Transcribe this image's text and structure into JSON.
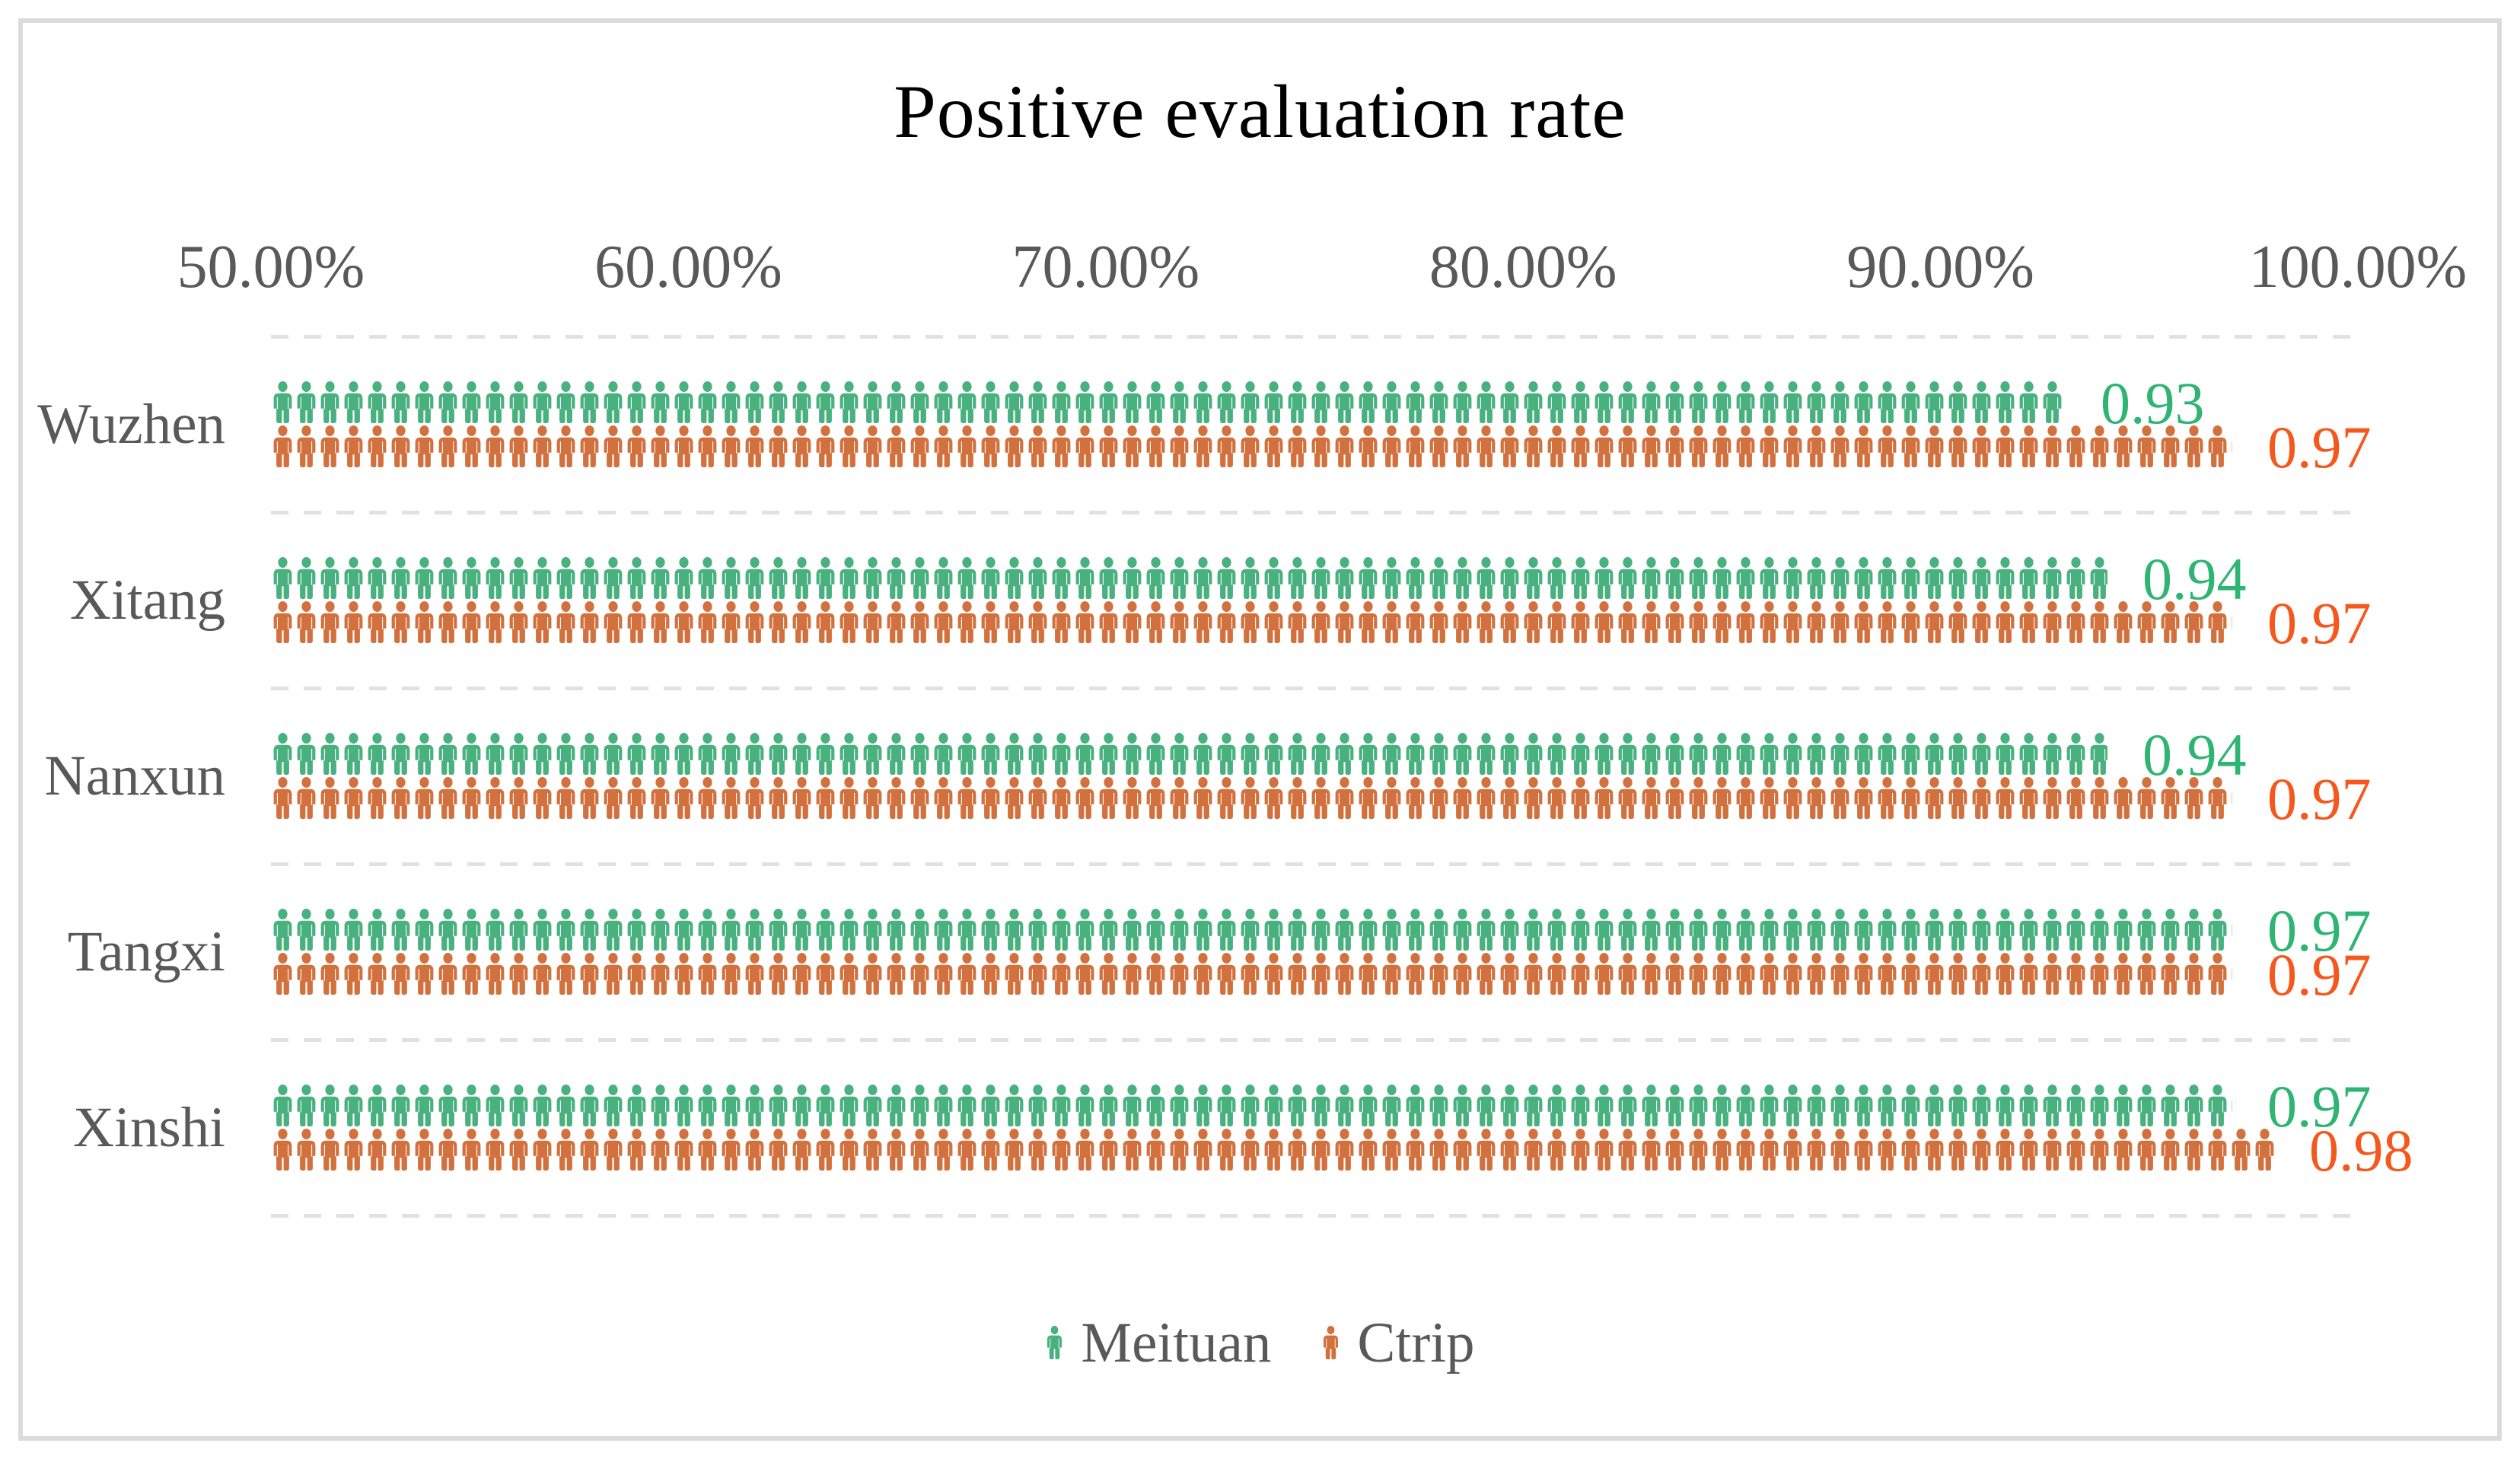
{
  "title": "Positive evaluation rate",
  "axis": {
    "tick_labels": [
      "50.00%",
      "60.00%",
      "70.00%",
      "80.00%",
      "90.00%",
      "100.00%"
    ],
    "min": 0.5,
    "max": 1.0
  },
  "legend": {
    "items": [
      {
        "label": "Meituan",
        "color_key": "green"
      },
      {
        "label": "Ctrip",
        "color_key": "orange"
      }
    ]
  },
  "colors": {
    "green_icon": "#48B17F",
    "orange_icon": "#D2713E",
    "green_label": "#2EB473",
    "orange_label": "#F4581D",
    "axis_text": "#595959",
    "title_text": "#000000",
    "gridline": "#E1E1E1",
    "frame_border": "#DBDBDB"
  },
  "chart_data": {
    "type": "bar",
    "variant": "pictogram-people",
    "orientation": "horizontal",
    "title": "Positive evaluation rate",
    "categories": [
      "Wuzhen",
      "Xitang",
      "Nanxun",
      "Tangxi",
      "Xinshi"
    ],
    "series": [
      {
        "name": "Meituan",
        "color_key": "green",
        "values": [
          0.93,
          0.94,
          0.94,
          0.97,
          0.97
        ],
        "labels": [
          "0.93",
          "0.94",
          "0.94",
          "0.97",
          "0.97"
        ]
      },
      {
        "name": "Ctrip",
        "color_key": "orange",
        "values": [
          0.97,
          0.97,
          0.97,
          0.97,
          0.98
        ],
        "labels": [
          "0.97",
          "0.97",
          "0.97",
          "0.97",
          "0.98"
        ]
      }
    ],
    "xlabel": "",
    "ylabel": "",
    "xlim": [
      0.5,
      1.0
    ],
    "x_tick_labels": [
      "50.00%",
      "60.00%",
      "70.00%",
      "80.00%",
      "90.00%",
      "100.00%"
    ],
    "grid": "horizontal-dashed",
    "legend_position": "bottom"
  }
}
